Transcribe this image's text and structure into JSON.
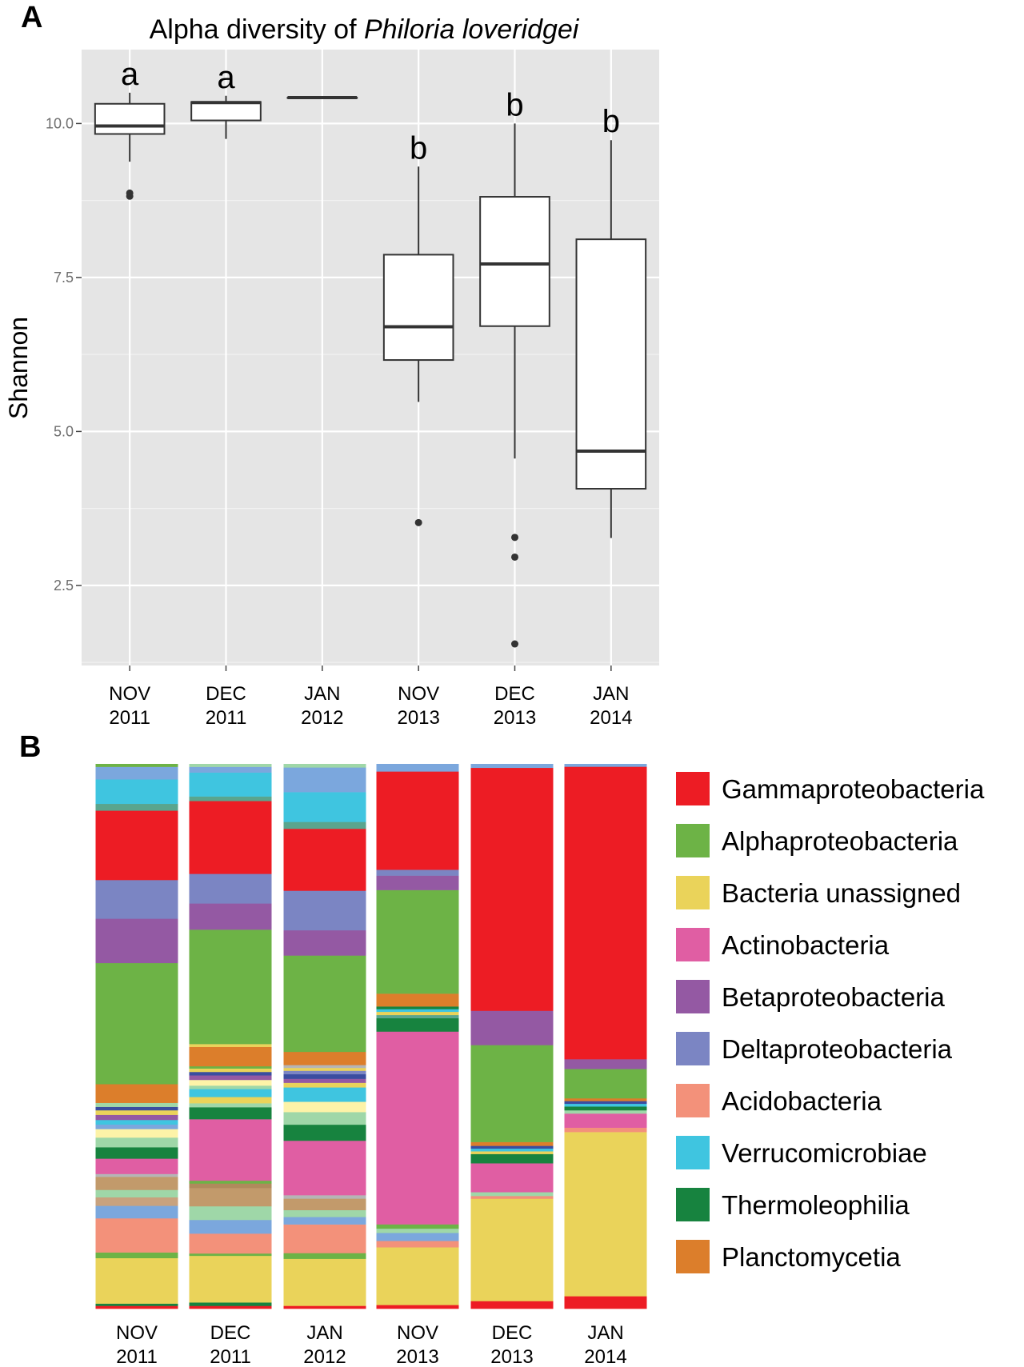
{
  "panel_a_label": "A",
  "panel_b_label": "B",
  "chart_data": [
    {
      "type": "box",
      "title_prefix": "Alpha diversity of ",
      "title_italic": "Philoria loveridgei",
      "ylabel": "Shannon",
      "ylim": [
        1.2,
        11.2
      ],
      "yticks": [
        2.5,
        5.0,
        7.5,
        10.0
      ],
      "ytick_labels": [
        "2.5",
        "5.0",
        "7.5",
        "10.0"
      ],
      "grid": true,
      "categories": [
        {
          "month": "NOV",
          "year": "2011"
        },
        {
          "month": "DEC",
          "year": "2011"
        },
        {
          "month": "JAN",
          "year": "2012"
        },
        {
          "month": "NOV",
          "year": "2013"
        },
        {
          "month": "DEC",
          "year": "2013"
        },
        {
          "month": "JAN",
          "year": "2014"
        }
      ],
      "boxes": [
        {
          "min": 9.38,
          "q1": 9.83,
          "median": 9.96,
          "q3": 10.32,
          "max": 10.5,
          "outliers": [
            8.82,
            8.87
          ],
          "letter": "a"
        },
        {
          "min": 9.75,
          "q1": 10.05,
          "median": 10.34,
          "q3": 10.35,
          "max": 10.45,
          "outliers": [],
          "letter": "a"
        },
        {
          "min": 10.42,
          "q1": 10.42,
          "median": 10.42,
          "q3": 10.42,
          "max": 10.42,
          "outliers": [],
          "letter": ""
        },
        {
          "min": 5.48,
          "q1": 6.16,
          "median": 6.7,
          "q3": 7.87,
          "max": 9.3,
          "outliers": [
            3.52
          ],
          "letter": "b"
        },
        {
          "min": 4.56,
          "q1": 6.71,
          "median": 7.72,
          "q3": 8.81,
          "max": 10.0,
          "outliers": [
            3.28,
            2.96,
            1.55
          ],
          "letter": "b"
        },
        {
          "min": 3.27,
          "q1": 4.07,
          "median": 4.68,
          "q3": 8.12,
          "max": 9.73,
          "outliers": [],
          "letter": "b"
        }
      ]
    },
    {
      "type": "stacked_bar",
      "categories": [
        {
          "month": "NOV",
          "year": "2011"
        },
        {
          "month": "DEC",
          "year": "2011"
        },
        {
          "month": "JAN",
          "year": "2012"
        },
        {
          "month": "NOV",
          "year": "2013"
        },
        {
          "month": "DEC",
          "year": "2013"
        },
        {
          "month": "JAN",
          "year": "2014"
        }
      ],
      "legend": [
        {
          "name": "Gammaproteobacteria",
          "color": "#ed1c24"
        },
        {
          "name": "Alphaproteobacteria",
          "color": "#6db346"
        },
        {
          "name": "Bacteria unassigned",
          "color": "#ead35a"
        },
        {
          "name": "Actinobacteria",
          "color": "#e05ea3"
        },
        {
          "name": "Betaproteobacteria",
          "color": "#9459a3"
        },
        {
          "name": "Deltaproteobacteria",
          "color": "#7b85c3"
        },
        {
          "name": "Acidobacteria",
          "color": "#f3917a"
        },
        {
          "name": "Verrucomicrobiae",
          "color": "#3fc5e0"
        },
        {
          "name": "Thermoleophilia",
          "color": "#17833f"
        },
        {
          "name": "Planctomycetia",
          "color": "#dc7e2b"
        }
      ],
      "stacks": [
        [
          {
            "color": "#ed1c24",
            "value": 0.5
          },
          {
            "color": "#17833f",
            "value": 0.4
          },
          {
            "color": "#ead35a",
            "value": 8.0
          },
          {
            "color": "#6db346",
            "value": 1.0
          },
          {
            "color": "#f3917a",
            "value": 6.0
          },
          {
            "color": "#7ba7dd",
            "value": 2.2
          },
          {
            "color": "#c8a27e",
            "value": 1.5
          },
          {
            "color": "#9fd7a8",
            "value": 1.3
          },
          {
            "color": "#c29a6b",
            "value": 2.3
          },
          {
            "color": "#b5b5b5",
            "value": 0.5
          },
          {
            "color": "#e05ea3",
            "value": 2.7
          },
          {
            "color": "#17833f",
            "value": 2.0
          },
          {
            "color": "#9fd7a8",
            "value": 1.7
          },
          {
            "color": "#fdf3a8",
            "value": 1.5
          },
          {
            "color": "#7ba7dd",
            "value": 0.8
          },
          {
            "color": "#3fc5e0",
            "value": 0.8
          },
          {
            "color": "#9459a3",
            "value": 0.9
          },
          {
            "color": "#ead35a",
            "value": 0.8
          },
          {
            "color": "#3a4da0",
            "value": 0.6
          },
          {
            "color": "#9fd7a8",
            "value": 0.7
          },
          {
            "color": "#dc7e2b",
            "value": 3.3
          },
          {
            "color": "#6db346",
            "value": 21.3
          },
          {
            "color": "#9459a3",
            "value": 7.8
          },
          {
            "color": "#7b85c3",
            "value": 6.8
          },
          {
            "color": "#ed1c24",
            "value": 12.2
          },
          {
            "color": "#5aa58e",
            "value": 1.2
          },
          {
            "color": "#3fc5e0",
            "value": 4.3
          },
          {
            "color": "#7ba7dd",
            "value": 2.2
          },
          {
            "color": "#6db346",
            "value": 0.5
          }
        ],
        [
          {
            "color": "#ed1c24",
            "value": 0.5
          },
          {
            "color": "#17833f",
            "value": 0.6
          },
          {
            "color": "#ead35a",
            "value": 8.2
          },
          {
            "color": "#6db346",
            "value": 0.4
          },
          {
            "color": "#f3917a",
            "value": 3.5
          },
          {
            "color": "#7ba7dd",
            "value": 2.4
          },
          {
            "color": "#9fd7a8",
            "value": 2.4
          },
          {
            "color": "#c29a6b",
            "value": 3.2
          },
          {
            "color": "#b08a5c",
            "value": 0.8
          },
          {
            "color": "#6db346",
            "value": 0.5
          },
          {
            "color": "#e05ea3",
            "value": 10.8
          },
          {
            "color": "#17833f",
            "value": 2.1
          },
          {
            "color": "#9fd7a8",
            "value": 0.7
          },
          {
            "color": "#ead35a",
            "value": 1.1
          },
          {
            "color": "#3fc5e0",
            "value": 1.4
          },
          {
            "color": "#9fd7a8",
            "value": 0.6
          },
          {
            "color": "#fdf3a8",
            "value": 1.0
          },
          {
            "color": "#9459a3",
            "value": 0.8
          },
          {
            "color": "#3a4da0",
            "value": 0.6
          },
          {
            "color": "#ead35a",
            "value": 0.6
          },
          {
            "color": "#6db346",
            "value": 0.4
          },
          {
            "color": "#dc7e2b",
            "value": 3.4
          },
          {
            "color": "#ead35a",
            "value": 0.5
          },
          {
            "color": "#6db346",
            "value": 20.1
          },
          {
            "color": "#9459a3",
            "value": 4.6
          },
          {
            "color": "#7b85c3",
            "value": 5.2
          },
          {
            "color": "#ed1c24",
            "value": 12.8
          },
          {
            "color": "#5aa58e",
            "value": 0.8
          },
          {
            "color": "#3fc5e0",
            "value": 4.2
          },
          {
            "color": "#7ba7dd",
            "value": 1.0
          },
          {
            "color": "#9fd7a8",
            "value": 0.5
          }
        ],
        [
          {
            "color": "#ed1c24",
            "value": 0.5
          },
          {
            "color": "#ead35a",
            "value": 8.2
          },
          {
            "color": "#6db346",
            "value": 1.0
          },
          {
            "color": "#f3917a",
            "value": 5.0
          },
          {
            "color": "#7ba7dd",
            "value": 1.3
          },
          {
            "color": "#9fd7a8",
            "value": 1.2
          },
          {
            "color": "#c29a6b",
            "value": 2.0
          },
          {
            "color": "#b5b5b5",
            "value": 0.6
          },
          {
            "color": "#e05ea3",
            "value": 9.5
          },
          {
            "color": "#17833f",
            "value": 2.8
          },
          {
            "color": "#9fd7a8",
            "value": 2.2
          },
          {
            "color": "#fdf3a8",
            "value": 1.8
          },
          {
            "color": "#3fc5e0",
            "value": 2.5
          },
          {
            "color": "#ead35a",
            "value": 0.8
          },
          {
            "color": "#9459a3",
            "value": 0.7
          },
          {
            "color": "#3a4da0",
            "value": 0.8
          },
          {
            "color": "#7b85c3",
            "value": 0.6
          },
          {
            "color": "#ead35a",
            "value": 0.5
          },
          {
            "color": "#b5b5b5",
            "value": 0.5
          },
          {
            "color": "#dc7e2b",
            "value": 2.3
          },
          {
            "color": "#6db346",
            "value": 16.8
          },
          {
            "color": "#9459a3",
            "value": 4.4
          },
          {
            "color": "#7b85c3",
            "value": 6.9
          },
          {
            "color": "#ed1c24",
            "value": 10.8
          },
          {
            "color": "#5aa58e",
            "value": 1.2
          },
          {
            "color": "#3fc5e0",
            "value": 5.2
          },
          {
            "color": "#7ba7dd",
            "value": 4.3
          },
          {
            "color": "#9fd7a8",
            "value": 0.6
          }
        ],
        [
          {
            "color": "#ed1c24",
            "value": 0.7
          },
          {
            "color": "#ead35a",
            "value": 10.8
          },
          {
            "color": "#f3917a",
            "value": 1.2
          },
          {
            "color": "#7ba7dd",
            "value": 1.5
          },
          {
            "color": "#9fd7a8",
            "value": 0.8
          },
          {
            "color": "#6db346",
            "value": 0.8
          },
          {
            "color": "#e05ea3",
            "value": 36.1
          },
          {
            "color": "#17833f",
            "value": 2.5
          },
          {
            "color": "#5aa58e",
            "value": 0.6
          },
          {
            "color": "#ead35a",
            "value": 0.6
          },
          {
            "color": "#3fc5e0",
            "value": 0.5
          },
          {
            "color": "#17833f",
            "value": 0.5
          },
          {
            "color": "#dc7e2b",
            "value": 2.4
          },
          {
            "color": "#6db346",
            "value": 19.4
          },
          {
            "color": "#9459a3",
            "value": 2.7
          },
          {
            "color": "#7b85c3",
            "value": 1.1
          },
          {
            "color": "#ed1c24",
            "value": 18.4
          },
          {
            "color": "#7ba7dd",
            "value": 1.4
          }
        ],
        [
          {
            "color": "#ed1c24",
            "value": 1.4
          },
          {
            "color": "#ead35a",
            "value": 18.8
          },
          {
            "color": "#f3917a",
            "value": 0.5
          },
          {
            "color": "#9fd7a8",
            "value": 0.7
          },
          {
            "color": "#e05ea3",
            "value": 5.3
          },
          {
            "color": "#17833f",
            "value": 1.7
          },
          {
            "color": "#ead35a",
            "value": 0.5
          },
          {
            "color": "#3fc5e0",
            "value": 0.5
          },
          {
            "color": "#3a4da0",
            "value": 0.5
          },
          {
            "color": "#dc7e2b",
            "value": 0.7
          },
          {
            "color": "#6db346",
            "value": 17.8
          },
          {
            "color": "#9459a3",
            "value": 6.3
          },
          {
            "color": "#ed1c24",
            "value": 44.6
          },
          {
            "color": "#7ba7dd",
            "value": 0.7
          }
        ],
        [
          {
            "color": "#ed1c24",
            "value": 2.3
          },
          {
            "color": "#ead35a",
            "value": 30.2
          },
          {
            "color": "#f3917a",
            "value": 0.8
          },
          {
            "color": "#e05ea3",
            "value": 2.6
          },
          {
            "color": "#9fd7a8",
            "value": 0.6
          },
          {
            "color": "#17833f",
            "value": 0.7
          },
          {
            "color": "#3fc5e0",
            "value": 0.5
          },
          {
            "color": "#3a4da0",
            "value": 0.5
          },
          {
            "color": "#dc7e2b",
            "value": 0.5
          },
          {
            "color": "#6db346",
            "value": 5.4
          },
          {
            "color": "#9459a3",
            "value": 1.8
          },
          {
            "color": "#ed1c24",
            "value": 53.8
          },
          {
            "color": "#7ba7dd",
            "value": 0.5
          }
        ]
      ]
    }
  ]
}
